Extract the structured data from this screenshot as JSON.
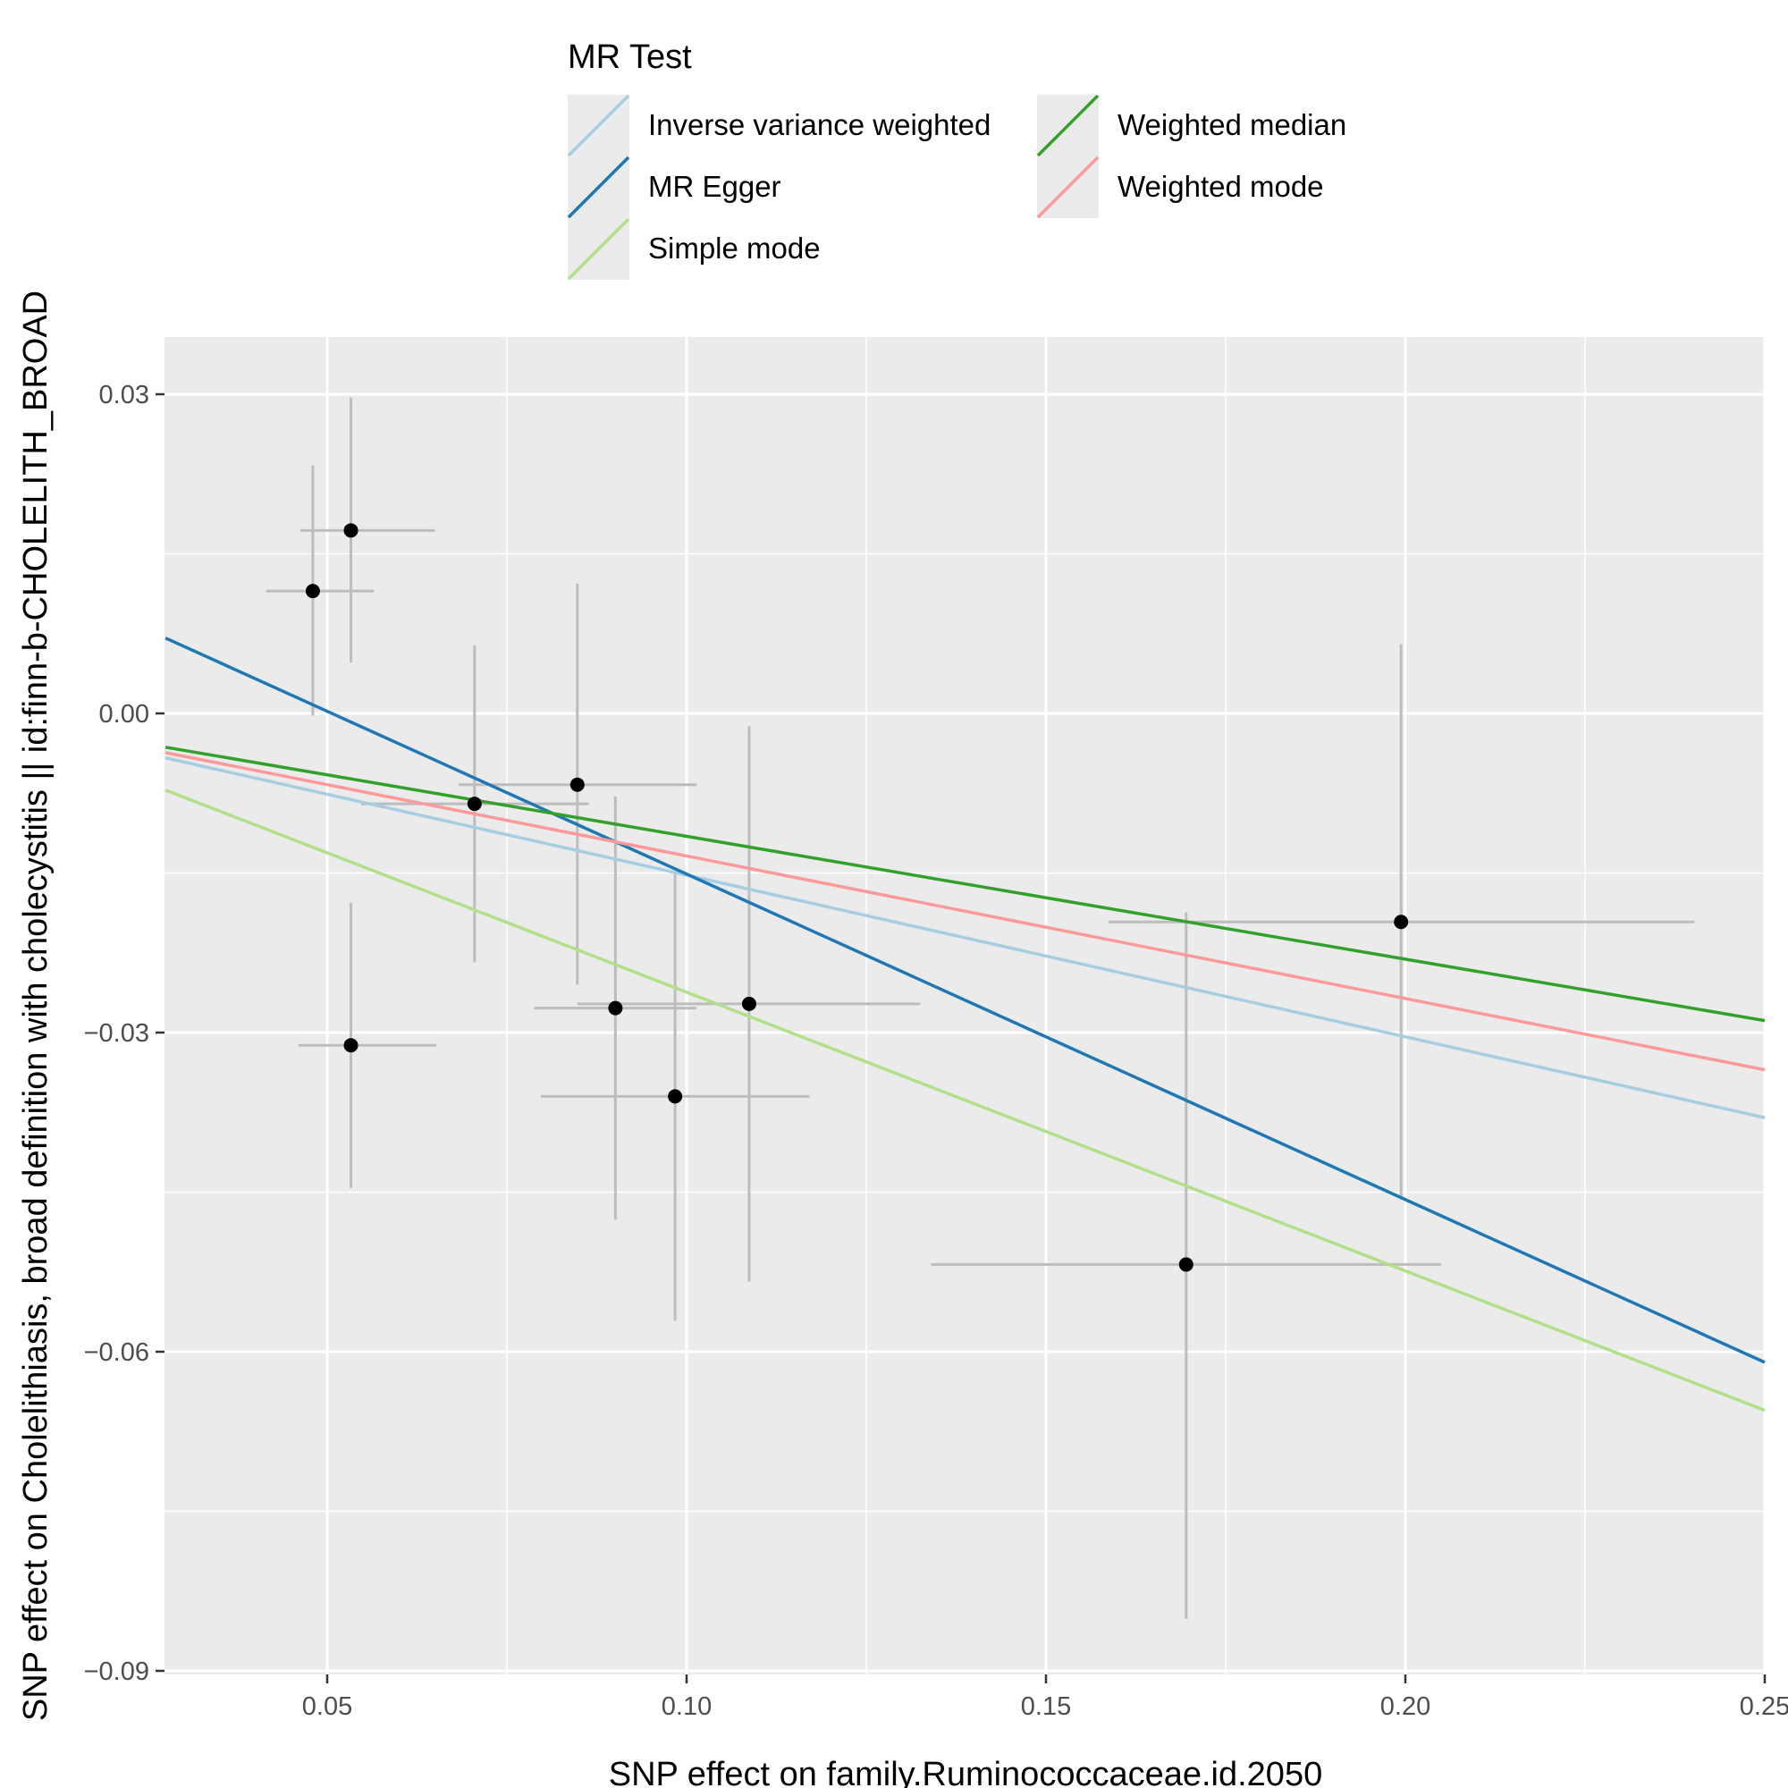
{
  "chart_data": {
    "type": "scatter",
    "xlabel": "SNP effect on family.Ruminococcaceae.id.2050",
    "ylabel": "SNP effect on Cholelithiasis, broad definition with cholecystitis || id:finn-b-CHOLELITH_BROAD",
    "xlim": [
      0.0275,
      0.25
    ],
    "ylim": [
      -0.09,
      0.0355
    ],
    "x_ticks": [
      {
        "value": 0.05,
        "label": "0.05"
      },
      {
        "value": 0.1,
        "label": "0.10"
      },
      {
        "value": 0.15,
        "label": "0.15"
      },
      {
        "value": 0.2,
        "label": "0.20"
      },
      {
        "value": 0.25,
        "label": "0.25"
      }
    ],
    "y_ticks": [
      {
        "value": 0.03,
        "label": "0.03"
      },
      {
        "value": 0.0,
        "label": "0.00"
      },
      {
        "value": -0.03,
        "label": "−0.03"
      },
      {
        "value": -0.06,
        "label": "−0.06"
      },
      {
        "value": -0.09,
        "label": "−0.09"
      }
    ],
    "x_minor": [
      0.075,
      0.125,
      0.175,
      0.225
    ],
    "y_minor": [
      0.015,
      -0.015,
      -0.045,
      -0.075
    ],
    "grid": true,
    "points": [
      {
        "x": 0.048,
        "y": 0.0115,
        "xerr_lo": 0.0415,
        "xerr_hi": 0.0565,
        "yerr_lo": -0.0002,
        "yerr_hi": 0.0233
      },
      {
        "x": 0.0533,
        "y": 0.0172,
        "xerr_lo": 0.0463,
        "xerr_hi": 0.065,
        "yerr_lo": 0.0048,
        "yerr_hi": 0.0297
      },
      {
        "x": 0.0533,
        "y": -0.0312,
        "xerr_lo": 0.046,
        "xerr_hi": 0.0652,
        "yerr_lo": -0.0446,
        "yerr_hi": -0.0178
      },
      {
        "x": 0.0705,
        "y": -0.0085,
        "xerr_lo": 0.0547,
        "xerr_hi": 0.0864,
        "yerr_lo": -0.0234,
        "yerr_hi": 0.0064
      },
      {
        "x": 0.0848,
        "y": -0.0067,
        "xerr_lo": 0.0683,
        "xerr_hi": 0.1014,
        "yerr_lo": -0.0255,
        "yerr_hi": 0.0122
      },
      {
        "x": 0.0901,
        "y": -0.0277,
        "xerr_lo": 0.0788,
        "xerr_hi": 0.1014,
        "yerr_lo": -0.0476,
        "yerr_hi": -0.0078
      },
      {
        "x": 0.0984,
        "y": -0.036,
        "xerr_lo": 0.0797,
        "xerr_hi": 0.1171,
        "yerr_lo": -0.0571,
        "yerr_hi": -0.0149
      },
      {
        "x": 0.1087,
        "y": -0.0273,
        "xerr_lo": 0.0848,
        "xerr_hi": 0.1325,
        "yerr_lo": -0.0534,
        "yerr_hi": -0.0012
      },
      {
        "x": 0.1695,
        "y": -0.0518,
        "xerr_lo": 0.134,
        "xerr_hi": 0.205,
        "yerr_lo": -0.0851,
        "yerr_hi": -0.0187
      },
      {
        "x": 0.1994,
        "y": -0.0196,
        "xerr_lo": 0.1587,
        "xerr_hi": 0.2402,
        "yerr_lo": -0.0456,
        "yerr_hi": 0.0065
      }
    ],
    "series": [
      {
        "name": "Inverse variance weighted",
        "color": "#a6cee3",
        "intercept": 0.0,
        "slope": -0.152
      },
      {
        "name": "MR Egger",
        "color": "#1f78b4",
        "intercept": 0.0155,
        "slope": -0.306
      },
      {
        "name": "Simple mode",
        "color": "#b2df8a",
        "intercept": 0.0,
        "slope": -0.262
      },
      {
        "name": "Weighted median",
        "color": "#33a02c",
        "intercept": 0.0,
        "slope": -0.1155
      },
      {
        "name": "Weighted mode",
        "color": "#fb9a99",
        "intercept": 0.0,
        "slope": -0.134
      }
    ],
    "legend": {
      "title": "MR Test",
      "position": "top"
    }
  }
}
